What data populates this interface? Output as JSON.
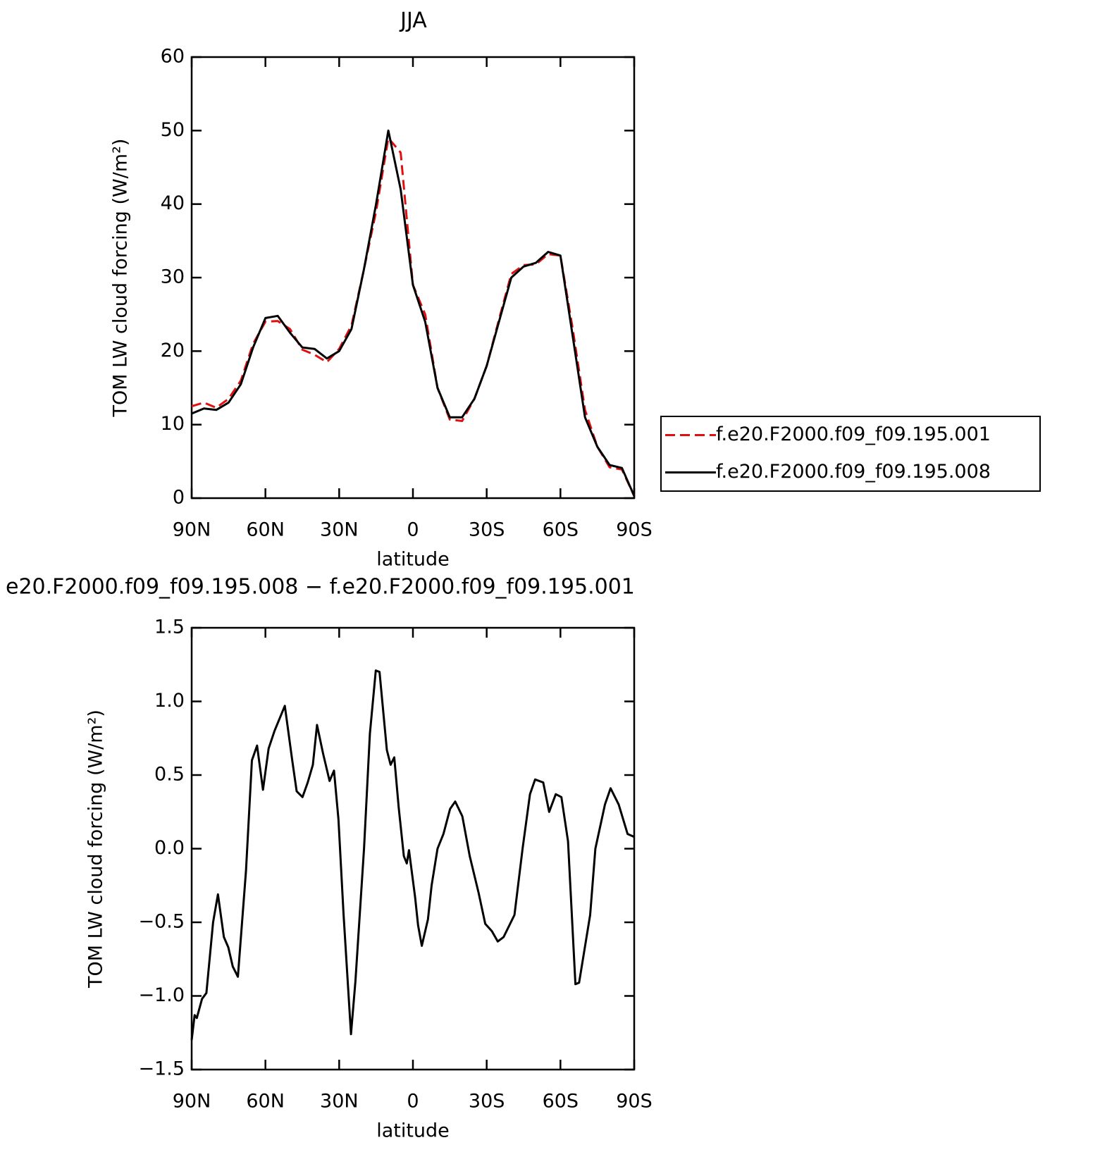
{
  "chart_data": [
    {
      "type": "line",
      "title": "JJA",
      "xlabel": "latitude",
      "ylabel": "TOM LW cloud forcing (W/m²)",
      "x": [
        90,
        85,
        80,
        75,
        70,
        65,
        60,
        55,
        50,
        45,
        40,
        35,
        30,
        25,
        20,
        15,
        10,
        5,
        0,
        -5,
        -10,
        -15,
        -20,
        -25,
        -30,
        -35,
        -40,
        -45,
        -50,
        -55,
        -60,
        -65,
        -70,
        -75,
        -80,
        -85,
        -90
      ],
      "series": [
        {
          "name": "f.e20.F2000.f09_f09.195.001",
          "color": "#e01010",
          "style": "dashed",
          "values": [
            12.5,
            13,
            12.3,
            13.5,
            16,
            21,
            24,
            24.1,
            23,
            20.2,
            19.5,
            18.5,
            20.3,
            23.5,
            31,
            39,
            49,
            47,
            29,
            25,
            15,
            10.7,
            10.5,
            13.5,
            18,
            24.3,
            30.5,
            31.7,
            31.8,
            33.2,
            33,
            23,
            12,
            7,
            4.2,
            3.9,
            0.3
          ]
        },
        {
          "name": "f.e20.F2000.f09_f09.195.008",
          "color": "#000000",
          "style": "solid",
          "values": [
            11.5,
            12.2,
            12,
            13,
            15.5,
            20.5,
            24.5,
            24.8,
            22.5,
            20.5,
            20.3,
            19,
            20,
            23,
            31,
            40,
            50,
            42,
            29,
            24,
            15,
            11,
            11,
            13.5,
            18,
            24,
            30,
            31.5,
            32,
            33.5,
            33,
            22,
            11,
            7,
            4.5,
            4.1,
            0.3
          ]
        }
      ],
      "xlim": [
        90,
        -90
      ],
      "xticks": [
        {
          "value": 90,
          "label": "90N"
        },
        {
          "value": 60,
          "label": "60N"
        },
        {
          "value": 30,
          "label": "30N"
        },
        0,
        {
          "value": -30,
          "label": "30S"
        },
        {
          "value": -60,
          "label": "60S"
        },
        {
          "value": -90,
          "label": "90S"
        }
      ],
      "ylim": [
        0,
        60
      ],
      "yticks": [
        0,
        10,
        20,
        30,
        40,
        50,
        60
      ],
      "legend": "right"
    },
    {
      "type": "line",
      "title": "e20.F2000.f09_f09.195.008 − f.e20.F2000.f09_f09.195.001",
      "xlabel": "latitude",
      "ylabel": "TOM LW cloud forcing (W/m²)",
      "x": [
        90,
        88.8,
        87.9,
        85.8,
        84,
        81.3,
        79.3,
        76.9,
        75.1,
        73.3,
        71.2,
        67.9,
        65.5,
        63.4,
        61,
        58.7,
        56.3,
        52.1,
        49.1,
        47.3,
        44.9,
        42.8,
        40.7,
        39,
        36.6,
        33.9,
        32.1,
        30.3,
        28.2,
        25.2,
        23.4,
        19.9,
        17.5,
        15.1,
        13.6,
        10.6,
        9.1,
        7.6,
        5.8,
        3.7,
        2.5,
        1.6,
        -0.9,
        -2.1,
        -3.6,
        -6.1,
        -7.6,
        -10,
        -12.4,
        -15.1,
        -17.2,
        -20.1,
        -23.1,
        -26.7,
        -29.4,
        -32.1,
        -34.5,
        -36.9,
        -41.3,
        -44.6,
        -47.6,
        -49.7,
        -53,
        -55.4,
        -58.1,
        -60.4,
        -63.1,
        -66.1,
        -67.6,
        -72.1,
        -74.2,
        -78.1,
        -80.4,
        -83.7,
        -87.3,
        -90
      ],
      "series": [
        {
          "color": "#000000",
          "style": "solid",
          "values": [
            -1.3,
            -1.13,
            -1.15,
            -1.02,
            -0.98,
            -0.5,
            -0.31,
            -0.6,
            -0.67,
            -0.8,
            -0.87,
            -0.15,
            0.6,
            0.7,
            0.4,
            0.68,
            0.8,
            0.97,
            0.6,
            0.39,
            0.35,
            0.45,
            0.57,
            0.84,
            0.65,
            0.46,
            0.53,
            0.2,
            -0.45,
            -1.26,
            -0.9,
            0,
            0.78,
            1.21,
            1.2,
            0.67,
            0.57,
            0.62,
            0.28,
            -0.05,
            -0.1,
            -0.01,
            -0.33,
            -0.52,
            -0.66,
            -0.48,
            -0.25,
            0,
            0.1,
            0.27,
            0.32,
            0.22,
            -0.05,
            -0.3,
            -0.51,
            -0.56,
            -0.63,
            -0.6,
            -0.45,
            0,
            0.37,
            0.47,
            0.45,
            0.25,
            0.37,
            0.35,
            0.05,
            -0.92,
            -0.91,
            -0.45,
            0,
            0.3,
            0.41,
            0.3,
            0.1,
            0.08
          ]
        }
      ],
      "xlim": [
        90,
        -90
      ],
      "xticks": [
        {
          "value": 90,
          "label": "90N"
        },
        {
          "value": 60,
          "label": "60N"
        },
        {
          "value": 30,
          "label": "30N"
        },
        0,
        {
          "value": -30,
          "label": "30S"
        },
        {
          "value": -60,
          "label": "60S"
        },
        {
          "value": -90,
          "label": "90S"
        }
      ],
      "ylim": [
        -1.5,
        1.5
      ],
      "yticks": [
        {
          "value": -1.5,
          "label": "−1.5"
        },
        {
          "value": -1,
          "label": "−1.0"
        },
        {
          "value": -0.5,
          "label": "−0.5"
        },
        {
          "value": 0,
          "label": "0.0"
        },
        0.5,
        {
          "value": 1,
          "label": "1.0"
        },
        1.5
      ]
    }
  ]
}
